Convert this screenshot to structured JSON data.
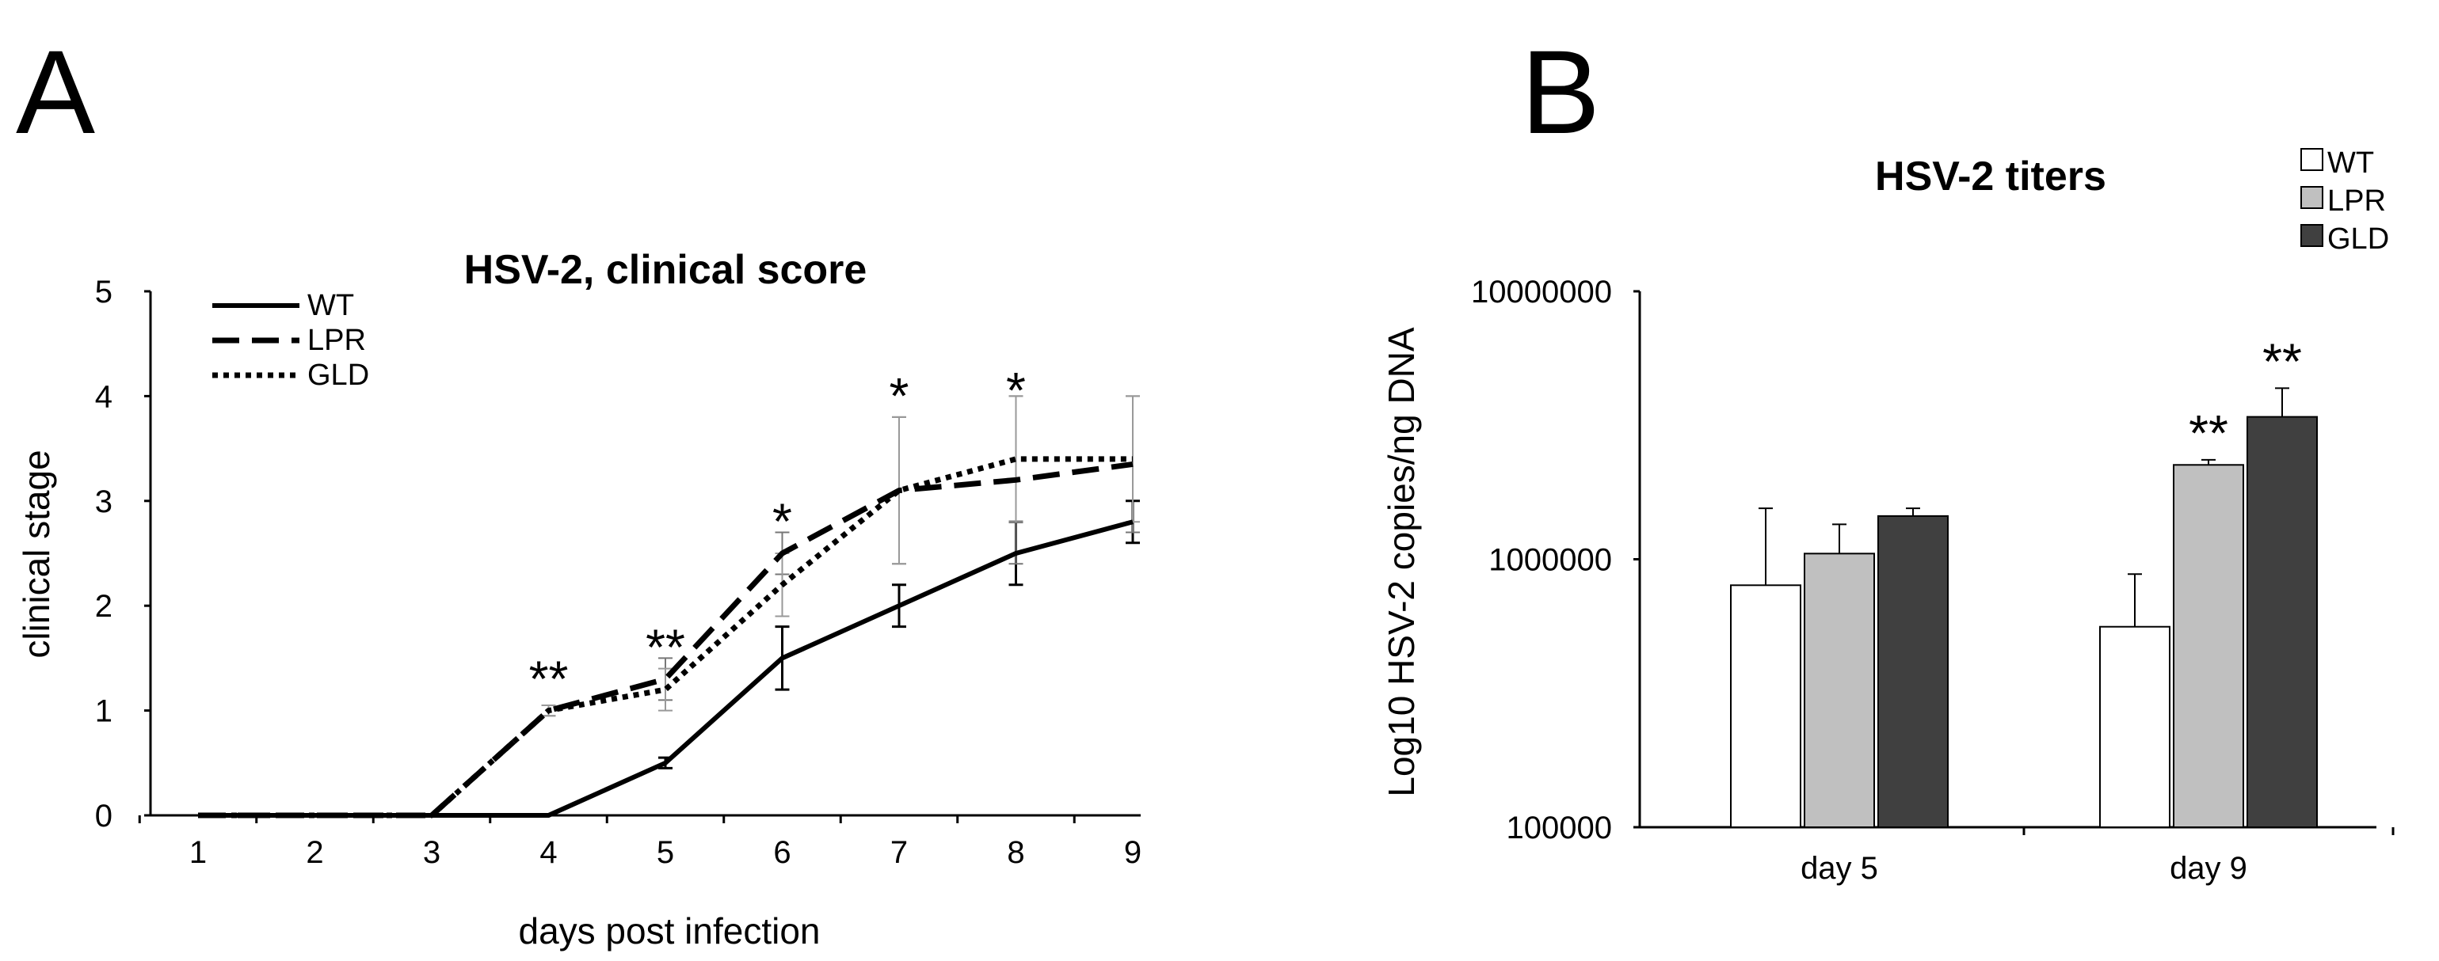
{
  "chart_data": [
    {
      "panel": "A",
      "type": "line",
      "title": "HSV-2, clinical score",
      "xlabel": "days post infection",
      "ylabel": "clinical stage",
      "x": [
        1,
        2,
        3,
        4,
        5,
        6,
        7,
        8,
        9
      ],
      "x_tick_labels": [
        "1",
        "2",
        "3",
        "4",
        "5",
        "6",
        "7",
        "8",
        "9"
      ],
      "y_tick_labels": [
        "0",
        "1",
        "2",
        "3",
        "4",
        "5"
      ],
      "ylim": [
        0,
        5
      ],
      "legend_position": "top-left",
      "series": [
        {
          "name": "WT",
          "style": "solid",
          "values": [
            0,
            0,
            0,
            0,
            0.5,
            1.5,
            2.0,
            2.5,
            2.8
          ],
          "errors": [
            0,
            0,
            0,
            0,
            0.05,
            0.3,
            0.2,
            0.3,
            0.2
          ]
        },
        {
          "name": "LPR",
          "style": "dashed",
          "values": [
            0,
            0,
            0,
            1.0,
            1.3,
            2.5,
            3.1,
            3.2,
            3.35
          ],
          "errors": [
            0,
            0,
            0,
            0.05,
            0.2,
            0.2,
            0.7,
            0.8,
            0.65
          ]
        },
        {
          "name": "GLD",
          "style": "dotted",
          "values": [
            0,
            0,
            0,
            1.0,
            1.2,
            2.2,
            3.1,
            3.4,
            3.4
          ],
          "errors": [
            0,
            0,
            0,
            0.05,
            0.2,
            0.3,
            0.7,
            0.6,
            0.6
          ]
        }
      ],
      "annotations": [
        {
          "x": 4,
          "text": "**",
          "y": 1.35
        },
        {
          "x": 5,
          "text": "**",
          "y": 1.65
        },
        {
          "x": 6,
          "text": "*",
          "y": 2.85
        },
        {
          "x": 7,
          "text": "*",
          "y": 4.05
        },
        {
          "x": 8,
          "text": "*",
          "y": 4.1
        }
      ]
    },
    {
      "panel": "B",
      "type": "bar",
      "title": "HSV-2 titers",
      "xlabel": "",
      "ylabel": "Log10 HSV-2 copies/ng DNA",
      "yscale": "log",
      "ylim": [
        100000,
        10000000
      ],
      "y_tick_labels": [
        "100000",
        "1000000",
        "10000000"
      ],
      "y_tick_values": [
        100000,
        1000000,
        10000000
      ],
      "categories": [
        "day 5",
        "day 9"
      ],
      "legend_position": "top-right",
      "series": [
        {
          "name": "WT",
          "color": "#ffffff",
          "values": [
            800000,
            560000
          ],
          "errors": [
            750000,
            320000
          ]
        },
        {
          "name": "LPR",
          "color": "#c0c0c0",
          "values": [
            1050000,
            2250000
          ],
          "errors": [
            300000,
            100000
          ]
        },
        {
          "name": "GLD",
          "color": "#404040",
          "values": [
            1450000,
            3400000
          ],
          "errors": [
            100000,
            950000
          ]
        }
      ],
      "annotations": [
        {
          "category": "day 9",
          "series": "LPR",
          "text": "**"
        },
        {
          "category": "day 9",
          "series": "GLD",
          "text": "**"
        }
      ]
    }
  ]
}
